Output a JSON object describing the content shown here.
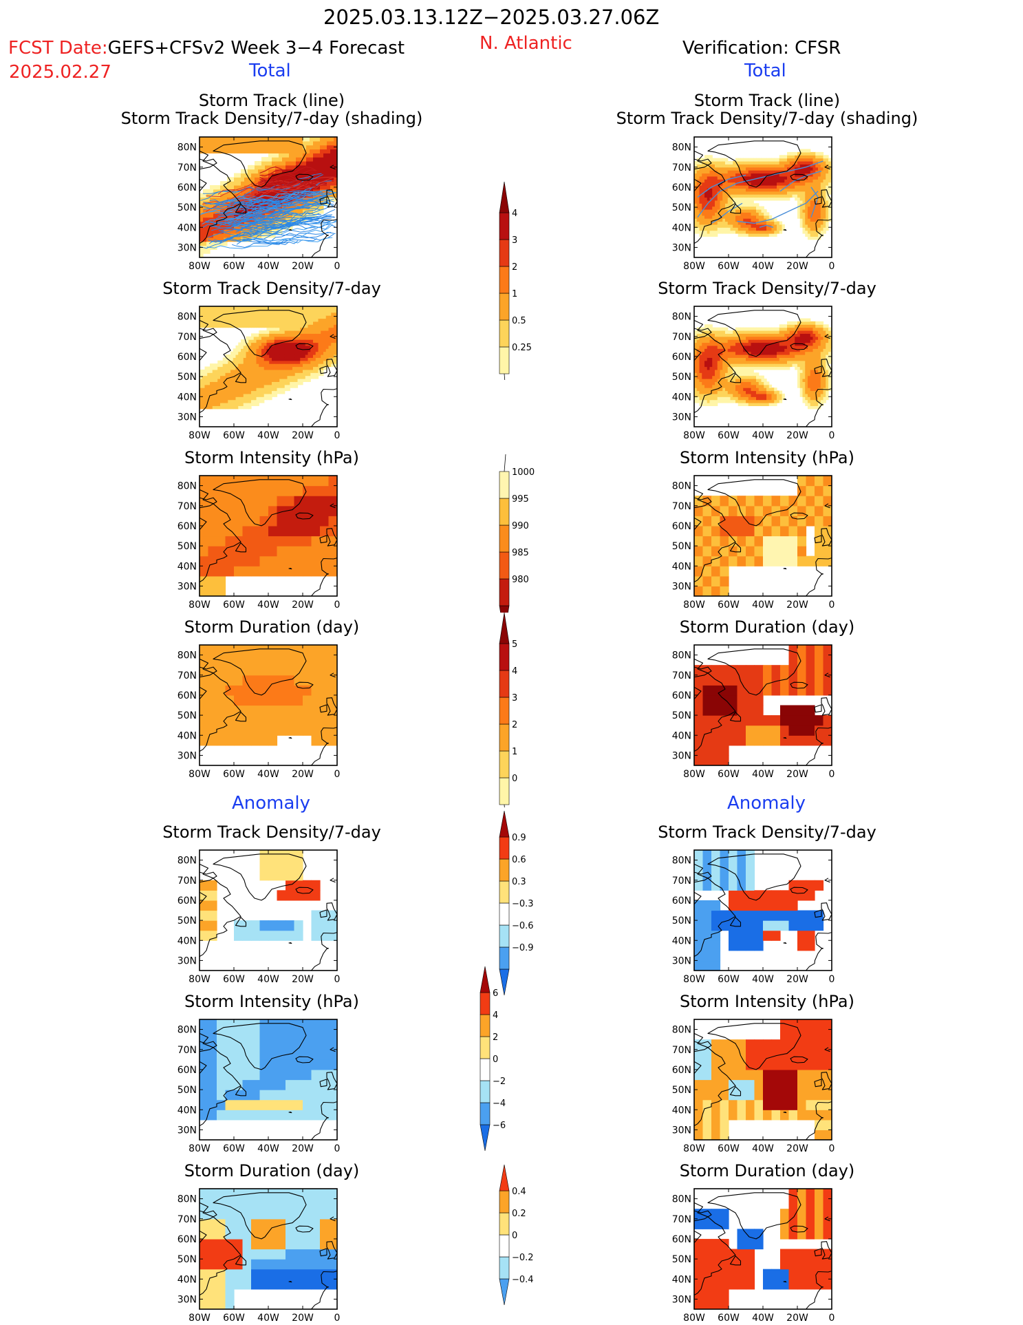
{
  "header": {
    "period": "2025.03.13.12Z−2025.03.27.06Z",
    "fcst_date_label": "FCST Date:",
    "fcst_date_value": "2025.02.27",
    "model": "GEFS+CFSv2 Week 3−4 Forecast",
    "region": "N. Atlantic",
    "verification": "Verification: CFSR"
  },
  "sections": {
    "total_left": "Total",
    "total_right": "Total",
    "anomaly_left": "Anomaly",
    "anomaly_right": "Anomaly"
  },
  "colors": {
    "red_text": "#ee2222",
    "blue_text": "#1a3df0",
    "density_scale": [
      "#fff5a8",
      "#fdd45a",
      "#fca428",
      "#fc7a18",
      "#e53a14",
      "#b81010",
      "#8a0505"
    ],
    "intensity_scale": [
      "#fff5b0",
      "#fdbf3c",
      "#fb8c1c",
      "#f25a14",
      "#c41c0e",
      "#8a0505"
    ],
    "anomaly_scale": [
      "#1a6ee6",
      "#4ba0f0",
      "#a6e2f5",
      "#ffffff",
      "#ffe27a",
      "#fca428",
      "#f23c14",
      "#a40808"
    ]
  },
  "axes": {
    "lat_ticks": [
      "80N",
      "70N",
      "60N",
      "50N",
      "40N",
      "30N"
    ],
    "lon_ticks": [
      "80W",
      "60W",
      "40W",
      "20W",
      "0"
    ]
  },
  "chart_data": [
    {
      "type": "heatmap",
      "panel": "forecast-total-track",
      "title": "Storm Track (line)",
      "subtitle": "Storm Track Density/7-day (shading)",
      "xlim": [
        "80W",
        "0"
      ],
      "ylim": [
        "30N",
        "80N"
      ]
    },
    {
      "type": "heatmap",
      "panel": "cfsr-total-track",
      "title": "Storm Track (line)",
      "subtitle": "Storm Track Density/7-day (shading)",
      "xlim": [
        "80W",
        "0"
      ],
      "ylim": [
        "30N",
        "80N"
      ]
    },
    {
      "type": "heatmap",
      "panel": "forecast-total-density",
      "title": "Storm Track Density/7-day"
    },
    {
      "type": "heatmap",
      "panel": "cfsr-total-density",
      "title": "Storm Track Density/7-day"
    },
    {
      "type": "heatmap",
      "panel": "forecast-total-intensity",
      "title": "Storm Intensity (hPa)"
    },
    {
      "type": "heatmap",
      "panel": "cfsr-total-intensity",
      "title": "Storm Intensity (hPa)"
    },
    {
      "type": "heatmap",
      "panel": "forecast-total-duration",
      "title": "Storm Duration (day)"
    },
    {
      "type": "heatmap",
      "panel": "cfsr-total-duration",
      "title": "Storm Duration (day)"
    },
    {
      "type": "heatmap",
      "panel": "forecast-anom-density",
      "title": "Storm Track Density/7-day"
    },
    {
      "type": "heatmap",
      "panel": "cfsr-anom-density",
      "title": "Storm Track Density/7-day"
    },
    {
      "type": "heatmap",
      "panel": "forecast-anom-intensity",
      "title": "Storm Intensity (hPa)"
    },
    {
      "type": "heatmap",
      "panel": "cfsr-anom-intensity",
      "title": "Storm Intensity (hPa)"
    },
    {
      "type": "heatmap",
      "panel": "forecast-anom-duration",
      "title": "Storm Duration (day)"
    },
    {
      "type": "heatmap",
      "panel": "cfsr-anom-duration",
      "title": "Storm Duration (day)"
    }
  ],
  "colorbars": [
    {
      "name": "total-density",
      "labels": [
        "4",
        "3",
        "2",
        "1",
        "0.5",
        "0.25"
      ]
    },
    {
      "name": "total-intensity",
      "labels": [
        "1000",
        "995",
        "990",
        "985",
        "980"
      ]
    },
    {
      "name": "total-duration",
      "labels": [
        "5",
        "4",
        "3",
        "2",
        "1",
        "0"
      ]
    },
    {
      "name": "anom-density",
      "labels": [
        "0.9",
        "0.6",
        "0.3",
        "−0.3",
        "−0.6",
        "−0.9"
      ]
    },
    {
      "name": "anom-intensity",
      "labels": [
        "6",
        "4",
        "2",
        "0",
        "−2",
        "−4",
        "−6"
      ]
    },
    {
      "name": "anom-duration",
      "labels": [
        "0.4",
        "0.2",
        "0",
        "−0.2",
        "−0.4"
      ]
    }
  ]
}
